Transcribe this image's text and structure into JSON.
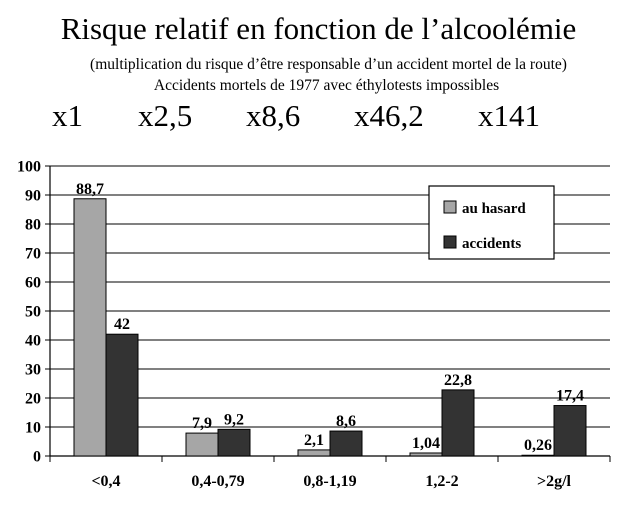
{
  "header": {
    "title": "Risque relatif en fonction de l’alcoolémie",
    "subtitle_1": "(multiplication du risque d’être responsable d’un accident mortel de la route)",
    "subtitle_2": "Accidents mortels de 1977 avec éthylotests impossibles"
  },
  "multipliers": [
    "x1",
    "x2,5",
    "x8,6",
    "x46,2",
    "x141"
  ],
  "colors": {
    "series_1": "#a6a6a6",
    "series_2": "#333333",
    "axis": "#000000",
    "grid": "#000000"
  },
  "chart_data": {
    "type": "bar",
    "title": "Risque relatif en fonction de l’alcoolémie",
    "categories": [
      "<0,4",
      "0,4-0,79",
      "0,8-1,19",
      "1,2-2",
      ">2g/l"
    ],
    "series": [
      {
        "name": "au hasard",
        "values": [
          88.7,
          7.9,
          2.1,
          1.04,
          0.26
        ],
        "labels": [
          "88,7",
          "7,9",
          "2,1",
          "1,04",
          "0,26"
        ]
      },
      {
        "name": "accidents",
        "values": [
          42,
          9.2,
          8.6,
          22.8,
          17.4
        ],
        "labels": [
          "42",
          "9,2",
          "8,6",
          "22,8",
          "17,4"
        ]
      }
    ],
    "ylim": [
      0,
      100
    ],
    "yticks": [
      0,
      10,
      20,
      30,
      40,
      50,
      60,
      70,
      80,
      90,
      100
    ],
    "xlabel": "",
    "ylabel": "",
    "grid": true,
    "legend_position": "top-right"
  }
}
